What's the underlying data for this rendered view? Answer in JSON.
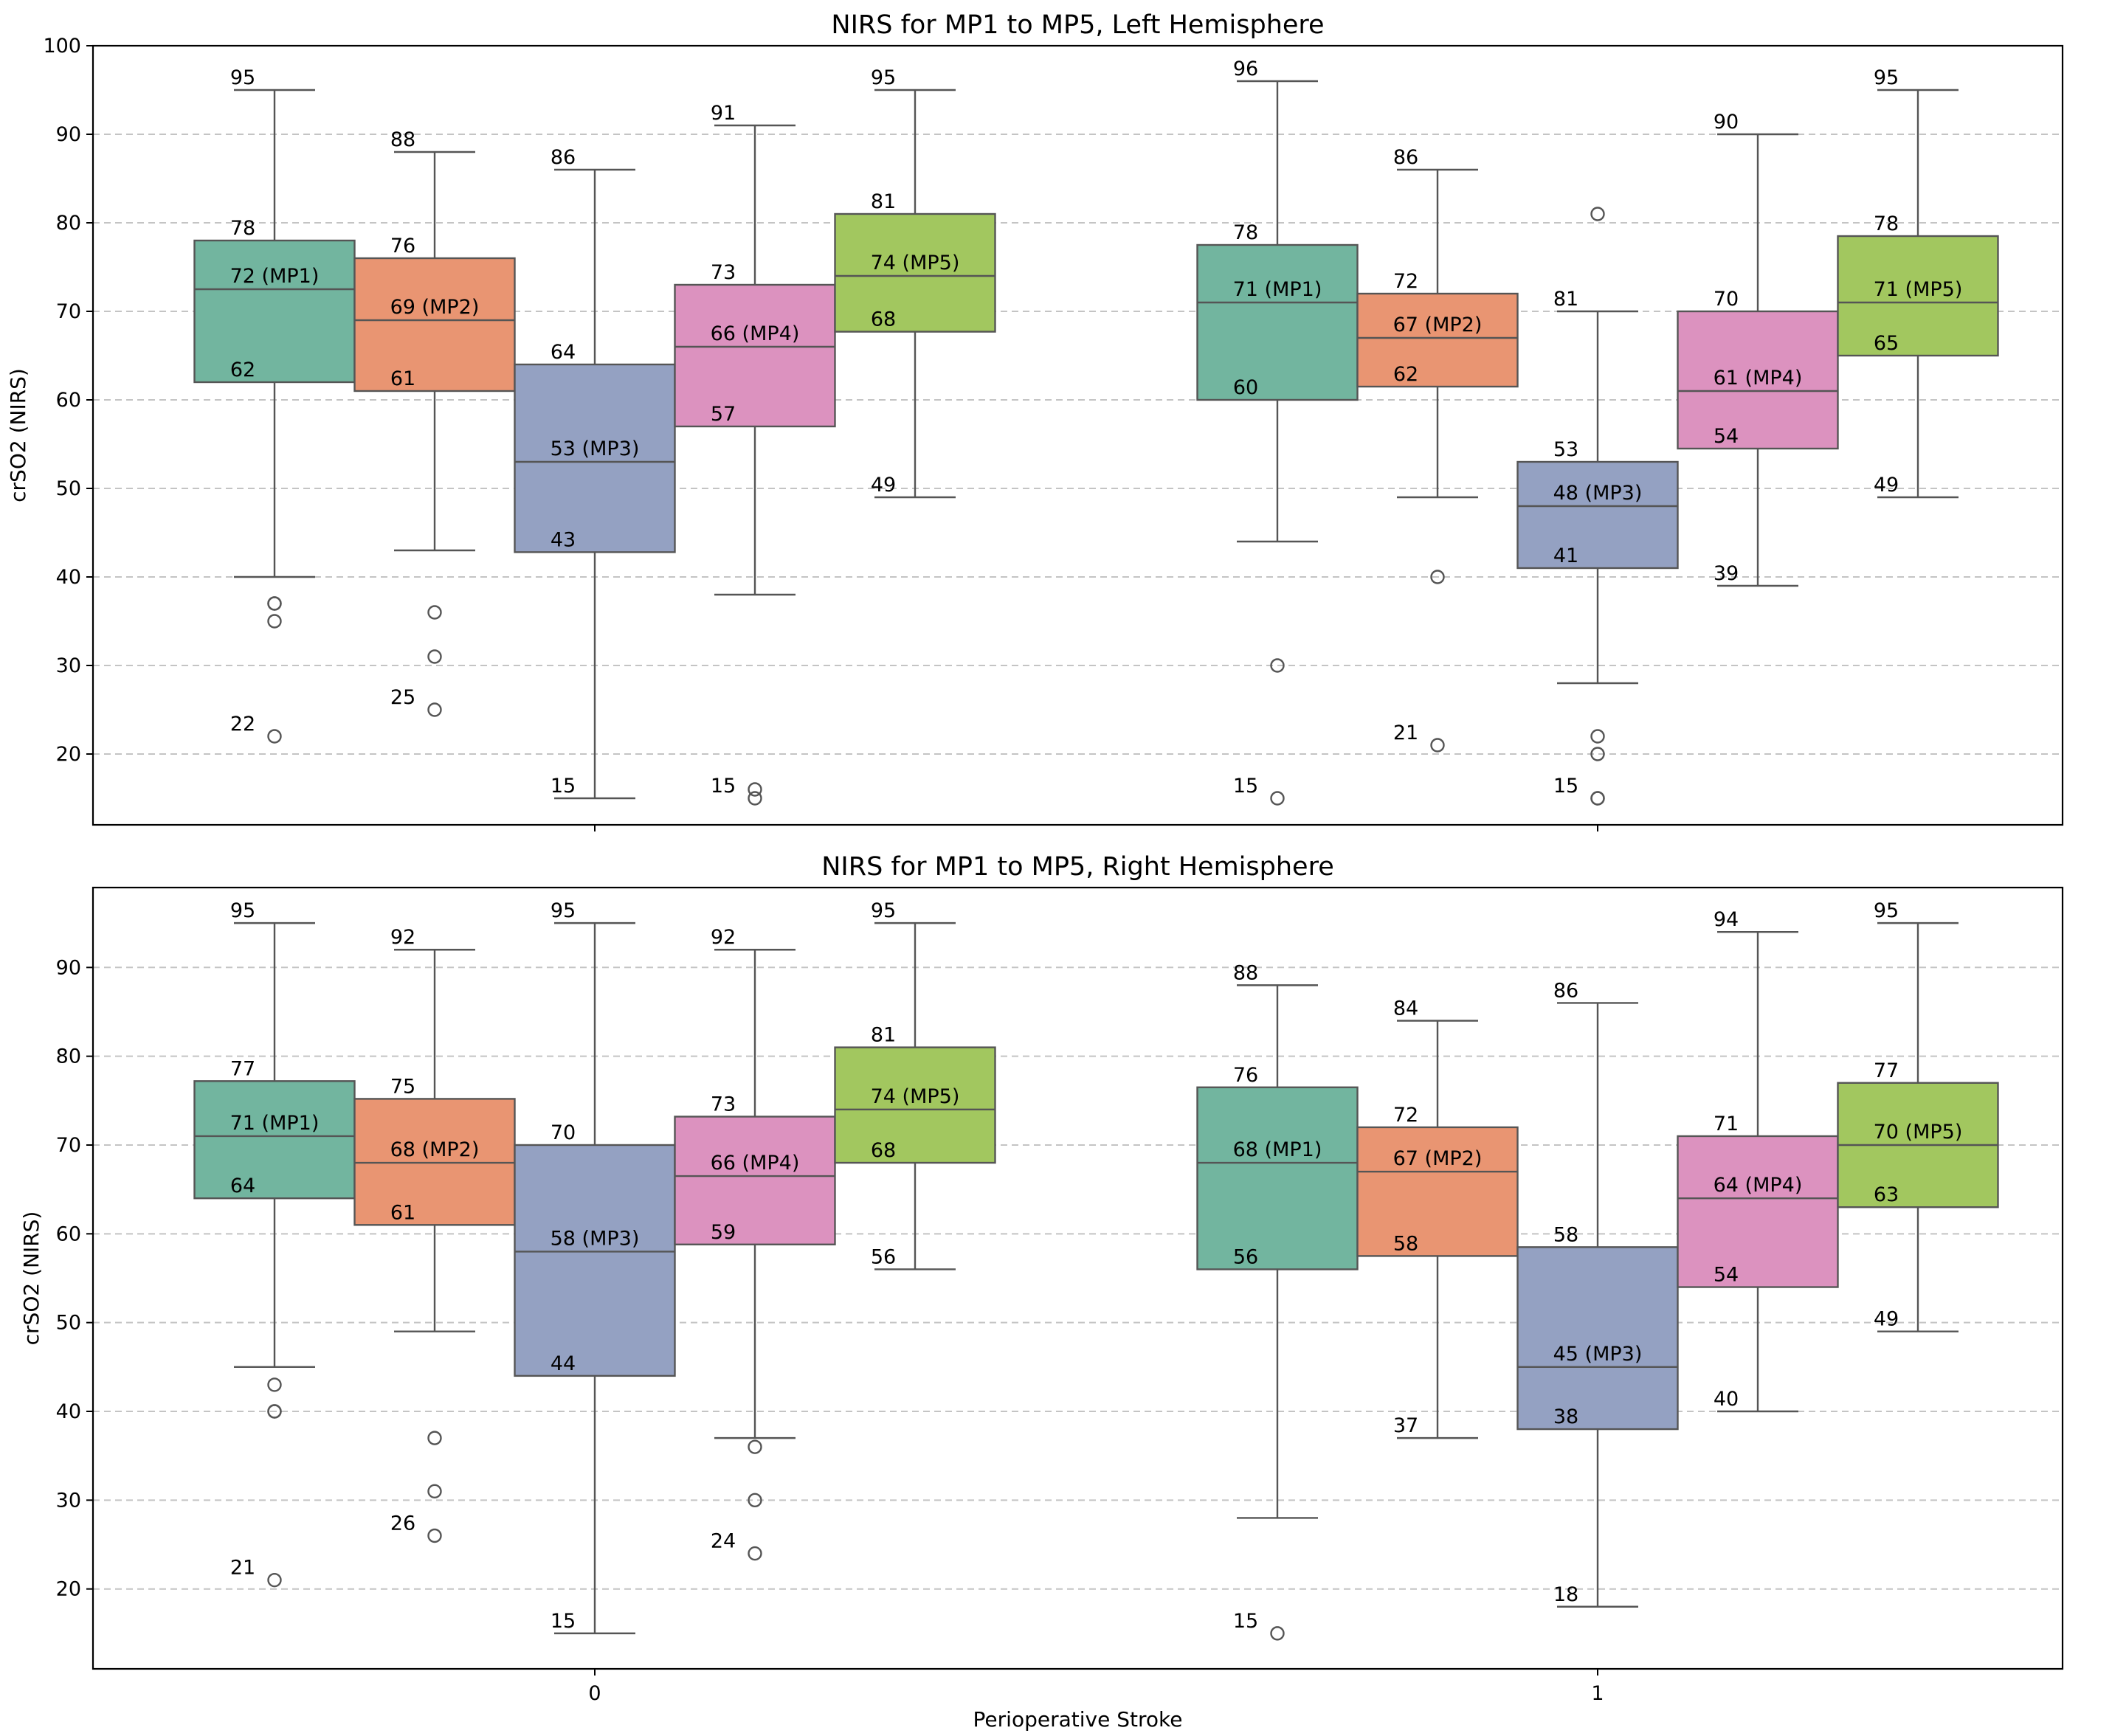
{
  "chart_data": [
    {
      "type": "box",
      "title": "NIRS for MP1 to MP5, Left Hemisphere",
      "ylabel": "crSO2 (NIRS)",
      "ylim": [
        12,
        100
      ],
      "yticks": [
        20,
        30,
        40,
        50,
        60,
        70,
        80,
        90,
        100
      ],
      "grid": true,
      "categories": [
        "0",
        "1"
      ],
      "groups": [
        {
          "category": "0",
          "boxes": [
            {
              "series": "MP1",
              "median_label": "72 (MP1)",
              "whisker_low": 40,
              "q1": 62,
              "median": 72.5,
              "q3": 78,
              "whisker_high": 95,
              "outliers": [
                37,
                37,
                35,
                22
              ],
              "labels": {
                "q1": "62",
                "q3": "78",
                "max": "95",
                "min": "22"
              }
            },
            {
              "series": "MP2",
              "median_label": "69 (MP2)",
              "whisker_low": 43,
              "q1": 61,
              "median": 69,
              "q3": 76,
              "whisker_high": 88,
              "outliers": [
                36,
                31,
                25
              ],
              "labels": {
                "q1": "61",
                "q3": "76",
                "max": "88",
                "min": "25"
              }
            },
            {
              "series": "MP3",
              "median_label": "53 (MP3)",
              "whisker_low": 15,
              "q1": 42.8,
              "median": 53,
              "q3": 64,
              "whisker_high": 86,
              "outliers": [],
              "labels": {
                "q1": "43",
                "q3": "64",
                "max": "86",
                "min": "15"
              }
            },
            {
              "series": "MP4",
              "median_label": "66 (MP4)",
              "whisker_low": 38,
              "q1": 57,
              "median": 66,
              "q3": 73,
              "whisker_high": 91,
              "outliers": [
                16,
                15
              ],
              "labels": {
                "q1": "57",
                "q3": "73",
                "max": "91",
                "min": "15"
              }
            },
            {
              "series": "MP5",
              "median_label": "74 (MP5)",
              "whisker_low": 49,
              "q1": 67.7,
              "median": 74,
              "q3": 81,
              "whisker_high": 95,
              "outliers": [],
              "labels": {
                "q1": "68",
                "q3": "81",
                "max": "95",
                "min": "49"
              }
            }
          ]
        },
        {
          "category": "1",
          "boxes": [
            {
              "series": "MP1",
              "median_label": "71 (MP1)",
              "whisker_low": 44,
              "q1": 60,
              "median": 71,
              "q3": 77.5,
              "whisker_high": 96,
              "outliers": [
                30,
                15
              ],
              "labels": {
                "q1": "60",
                "q3": "78",
                "max": "96",
                "min": "15"
              }
            },
            {
              "series": "MP2",
              "median_label": "67 (MP2)",
              "whisker_low": 49,
              "q1": 61.5,
              "median": 67,
              "q3": 72,
              "whisker_high": 86,
              "outliers": [
                40,
                21
              ],
              "labels": {
                "q1": "62",
                "q3": "72",
                "max": "86",
                "min": "21"
              }
            },
            {
              "series": "MP3",
              "median_label": "48 (MP3)",
              "whisker_low": 28,
              "q1": 41,
              "median": 48,
              "q3": 53,
              "whisker_high": 70,
              "outliers": [
                81,
                22,
                20,
                15,
                15
              ],
              "labels": {
                "q1": "41",
                "q3": "53",
                "max": "81",
                "min": "15"
              }
            },
            {
              "series": "MP4",
              "median_label": "61 (MP4)",
              "whisker_low": 39,
              "q1": 54.5,
              "median": 61,
              "q3": 70,
              "whisker_high": 90,
              "outliers": [],
              "labels": {
                "q1": "54",
                "q3": "70",
                "max": "90",
                "min": "39"
              }
            },
            {
              "series": "MP5",
              "median_label": "71 (MP5)",
              "whisker_low": 49,
              "q1": 65,
              "median": 71,
              "q3": 78.5,
              "whisker_high": 95,
              "outliers": [],
              "labels": {
                "q1": "65",
                "q3": "78",
                "max": "95",
                "min": "49"
              }
            }
          ]
        }
      ]
    },
    {
      "type": "box",
      "title": "NIRS for MP1 to MP5, Right Hemisphere",
      "xlabel": "Perioperative Stroke",
      "ylabel": "crSO2 (NIRS)",
      "ylim": [
        11,
        99
      ],
      "yticks": [
        20,
        30,
        40,
        50,
        60,
        70,
        80,
        90
      ],
      "grid": true,
      "categories": [
        "0",
        "1"
      ],
      "groups": [
        {
          "category": "0",
          "boxes": [
            {
              "series": "MP1",
              "median_label": "71 (MP1)",
              "whisker_low": 45,
              "q1": 64,
              "median": 71,
              "q3": 77.2,
              "whisker_high": 95,
              "outliers": [
                43,
                40,
                40,
                21
              ],
              "labels": {
                "q1": "64",
                "q3": "77",
                "max": "95",
                "min": "21"
              }
            },
            {
              "series": "MP2",
              "median_label": "68 (MP2)",
              "whisker_low": 49,
              "q1": 61,
              "median": 68,
              "q3": 75.2,
              "whisker_high": 92,
              "outliers": [
                37,
                31,
                26
              ],
              "labels": {
                "q1": "61",
                "q3": "75",
                "max": "92",
                "min": "26"
              }
            },
            {
              "series": "MP3",
              "median_label": "58 (MP3)",
              "whisker_low": 15,
              "q1": 44,
              "median": 58,
              "q3": 70,
              "whisker_high": 95,
              "outliers": [],
              "labels": {
                "q1": "44",
                "q3": "70",
                "max": "95",
                "min": "15"
              }
            },
            {
              "series": "MP4",
              "median_label": "66 (MP4)",
              "whisker_low": 37,
              "q1": 58.8,
              "median": 66.5,
              "q3": 73.2,
              "whisker_high": 92,
              "outliers": [
                36,
                30,
                24
              ],
              "labels": {
                "q1": "59",
                "q3": "73",
                "max": "92",
                "min": "24"
              }
            },
            {
              "series": "MP5",
              "median_label": "74 (MP5)",
              "whisker_low": 56,
              "q1": 68,
              "median": 74,
              "q3": 81,
              "whisker_high": 95,
              "outliers": [],
              "labels": {
                "q1": "68",
                "q3": "81",
                "max": "95",
                "min": "56"
              }
            }
          ]
        },
        {
          "category": "1",
          "boxes": [
            {
              "series": "MP1",
              "median_label": "68 (MP1)",
              "whisker_low": 28,
              "q1": 56,
              "median": 68,
              "q3": 76.5,
              "whisker_high": 88,
              "outliers": [
                15
              ],
              "labels": {
                "q1": "56",
                "q3": "76",
                "max": "88",
                "min": "15"
              }
            },
            {
              "series": "MP2",
              "median_label": "67 (MP2)",
              "whisker_low": 37,
              "q1": 57.5,
              "median": 67,
              "q3": 72,
              "whisker_high": 84,
              "outliers": [],
              "labels": {
                "q1": "58",
                "q3": "72",
                "max": "84",
                "min": "37"
              }
            },
            {
              "series": "MP3",
              "median_label": "45 (MP3)",
              "whisker_low": 18,
              "q1": 38,
              "median": 45,
              "q3": 58.5,
              "whisker_high": 86,
              "outliers": [],
              "labels": {
                "q1": "38",
                "q3": "58",
                "max": "86",
                "min": "18"
              }
            },
            {
              "series": "MP4",
              "median_label": "64 (MP4)",
              "whisker_low": 40,
              "q1": 54,
              "median": 64,
              "q3": 71,
              "whisker_high": 94,
              "outliers": [],
              "labels": {
                "q1": "54",
                "q3": "71",
                "max": "94",
                "min": "40"
              }
            },
            {
              "series": "MP5",
              "median_label": "70 (MP5)",
              "whisker_low": 49,
              "q1": 63,
              "median": 70,
              "q3": 77,
              "whisker_high": 95,
              "outliers": [],
              "labels": {
                "q1": "63",
                "q3": "77",
                "max": "95",
                "min": "49"
              }
            }
          ]
        }
      ]
    }
  ],
  "colors": {
    "MP1": "#72b59f",
    "MP2": "#e99572",
    "MP3": "#94a1c2",
    "MP4": "#dc92bf",
    "MP5": "#a2c75f"
  }
}
